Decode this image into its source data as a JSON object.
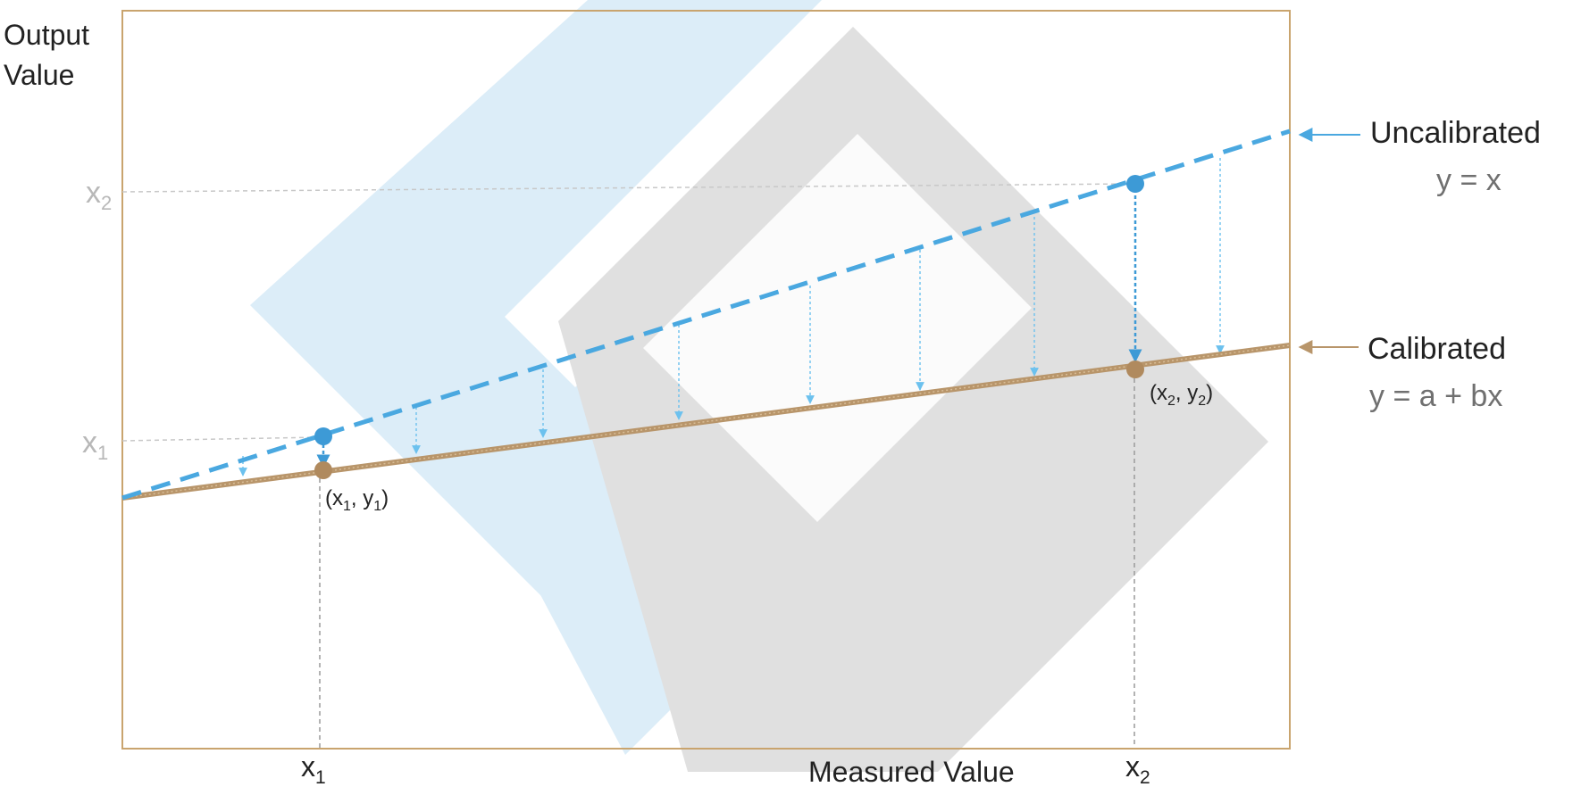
{
  "axes": {
    "y_label_line1": "Output",
    "y_label_line2": "Value",
    "x_label": "Measured Value",
    "x_tick_x1": "x",
    "x_tick_x1_sub": "1",
    "x_tick_x2": "x",
    "x_tick_x2_sub": "2",
    "y_tick_x1": "x",
    "y_tick_x1_sub": "1",
    "y_tick_x2": "x",
    "y_tick_x2_sub": "2"
  },
  "points": {
    "p1_open": "(x",
    "p1_sub1": "1",
    "p1_mid": ", y",
    "p1_sub2": "1",
    "p1_close": ")",
    "p2_open": "(x",
    "p2_sub1": "2",
    "p2_mid": ", y",
    "p2_sub2": "2",
    "p2_close": ")"
  },
  "legend": {
    "uncalibrated_title": "Uncalibrated",
    "uncalibrated_eq": "y = x",
    "calibrated_title": "Calibrated",
    "calibrated_eq": "y = a + bx"
  },
  "colors": {
    "uncalibrated": "#4aa8e0",
    "calibrated": "#b8956a",
    "frame": "#c9a46e",
    "guide": "#888888",
    "tick_grey": "#b8b8b8",
    "watermark_blue": "#dcedf8",
    "watermark_grey": "#e0e0e0"
  }
}
